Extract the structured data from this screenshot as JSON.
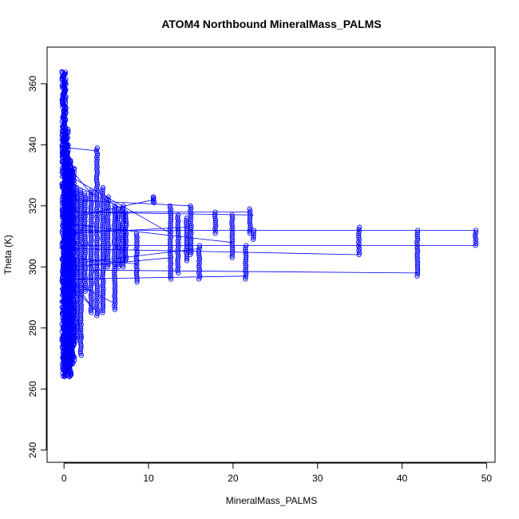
{
  "chart_data": {
    "type": "scatter",
    "title": "ATOM4 Northbound MineralMass_PALMS",
    "xlabel": "MineralMass_PALMS",
    "ylabel": "Theta (K)",
    "xlim": [
      -2,
      51
    ],
    "ylim": [
      236,
      372
    ],
    "xticks": [
      0,
      10,
      20,
      30,
      40,
      50
    ],
    "yticks": [
      240,
      260,
      280,
      300,
      320,
      340,
      360
    ],
    "xtick_labels": [
      "0",
      "10",
      "20",
      "30",
      "40",
      "50"
    ],
    "ytick_labels": [
      "240",
      "260",
      "280",
      "300",
      "320",
      "340",
      "360"
    ],
    "grid": false,
    "legend": "none",
    "color": "#0000ff",
    "marker": "open-circle",
    "connected": true,
    "clusters": [
      {
        "x": 0.0,
        "y_min": 264,
        "y_max": 364
      },
      {
        "x": 0.3,
        "y_min": 266,
        "y_max": 345
      },
      {
        "x": 0.6,
        "y_min": 264,
        "y_max": 335
      },
      {
        "x": 1.0,
        "y_min": 268,
        "y_max": 333
      },
      {
        "x": 1.5,
        "y_min": 276,
        "y_max": 326
      },
      {
        "x": 2.0,
        "y_min": 271,
        "y_max": 325
      },
      {
        "x": 2.5,
        "y_min": 292,
        "y_max": 324
      },
      {
        "x": 3.2,
        "y_min": 285,
        "y_max": 325
      },
      {
        "x": 3.9,
        "y_min": 284,
        "y_max": 339
      },
      {
        "x": 4.6,
        "y_min": 285,
        "y_max": 326
      },
      {
        "x": 5.2,
        "y_min": 300,
        "y_max": 323
      },
      {
        "x": 6.0,
        "y_min": 286,
        "y_max": 320
      },
      {
        "x": 6.4,
        "y_min": 300,
        "y_max": 319
      },
      {
        "x": 7.0,
        "y_min": 300,
        "y_max": 320
      },
      {
        "x": 7.3,
        "y_min": 302,
        "y_max": 318
      },
      {
        "x": 8.6,
        "y_min": 295,
        "y_max": 311
      },
      {
        "x": 10.6,
        "y_min": 321,
        "y_max": 323
      },
      {
        "x": 12.6,
        "y_min": 296,
        "y_max": 320
      },
      {
        "x": 13.5,
        "y_min": 298,
        "y_max": 317
      },
      {
        "x": 14.5,
        "y_min": 302,
        "y_max": 316
      },
      {
        "x": 15.0,
        "y_min": 304,
        "y_max": 320
      },
      {
        "x": 16.0,
        "y_min": 296,
        "y_max": 307
      },
      {
        "x": 17.9,
        "y_min": 311,
        "y_max": 318
      },
      {
        "x": 19.9,
        "y_min": 303,
        "y_max": 317
      },
      {
        "x": 21.5,
        "y_min": 296,
        "y_max": 307
      },
      {
        "x": 22.0,
        "y_min": 311,
        "y_max": 319
      },
      {
        "x": 22.4,
        "y_min": 309,
        "y_max": 312
      },
      {
        "x": 34.9,
        "y_min": 304,
        "y_max": 313
      },
      {
        "x": 41.8,
        "y_min": 297,
        "y_max": 312
      },
      {
        "x": 48.7,
        "y_min": 307,
        "y_max": 312
      }
    ],
    "connections": [
      [
        0.5,
        339,
        4.0,
        338
      ],
      [
        0.5,
        330,
        12.6,
        311
      ],
      [
        0.5,
        322,
        15.0,
        320
      ],
      [
        0.3,
        318,
        22.0,
        318
      ],
      [
        0.6,
        318,
        22.4,
        317
      ],
      [
        1.0,
        312,
        48.7,
        312
      ],
      [
        1.0,
        307,
        48.7,
        307
      ],
      [
        0.6,
        306,
        34.9,
        304
      ],
      [
        0.6,
        299,
        41.8,
        298
      ],
      [
        0.3,
        296,
        21.5,
        297
      ],
      [
        0.6,
        301,
        16.0,
        306
      ],
      [
        1.2,
        295,
        6.0,
        288
      ],
      [
        1.0,
        296,
        3.5,
        286
      ],
      [
        0.8,
        294,
        4.0,
        285
      ],
      [
        0.7,
        292,
        2.2,
        276
      ],
      [
        0.8,
        300,
        12.6,
        303
      ],
      [
        0.5,
        316,
        10.6,
        322
      ],
      [
        0.9,
        314,
        19.9,
        308
      ],
      [
        0.4,
        328,
        7.0,
        319
      ],
      [
        0.5,
        333,
        3.5,
        323
      ],
      [
        0.6,
        311,
        14.5,
        313
      ],
      [
        0.5,
        303,
        8.6,
        301
      ]
    ]
  }
}
